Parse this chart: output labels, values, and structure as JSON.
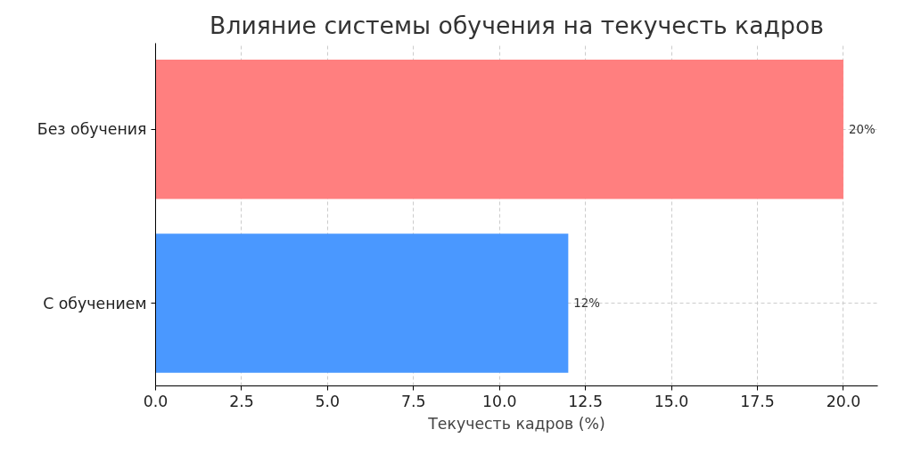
{
  "chart_data": {
    "type": "bar",
    "orientation": "horizontal",
    "title": "Влияние системы обучения на текучесть кадров",
    "xlabel": "Текучесть кадров (%)",
    "categories": [
      "Без обучения",
      "С обучением"
    ],
    "values": [
      20,
      12
    ],
    "colors": [
      "#ff7f7f",
      "#4a98ff"
    ],
    "value_labels": [
      "20%",
      "12%"
    ],
    "xlim": [
      0,
      21
    ],
    "xticks": [
      {
        "value": 0,
        "label": "0.0"
      },
      {
        "value": 2.5,
        "label": "2.5"
      },
      {
        "value": 5,
        "label": "5.0"
      },
      {
        "value": 7.5,
        "label": "7.5"
      },
      {
        "value": 10,
        "label": "10.0"
      },
      {
        "value": 12.5,
        "label": "12.5"
      },
      {
        "value": 15,
        "label": "15.0"
      },
      {
        "value": 17.5,
        "label": "17.5"
      },
      {
        "value": 20,
        "label": "20.0"
      }
    ],
    "grid": true
  }
}
